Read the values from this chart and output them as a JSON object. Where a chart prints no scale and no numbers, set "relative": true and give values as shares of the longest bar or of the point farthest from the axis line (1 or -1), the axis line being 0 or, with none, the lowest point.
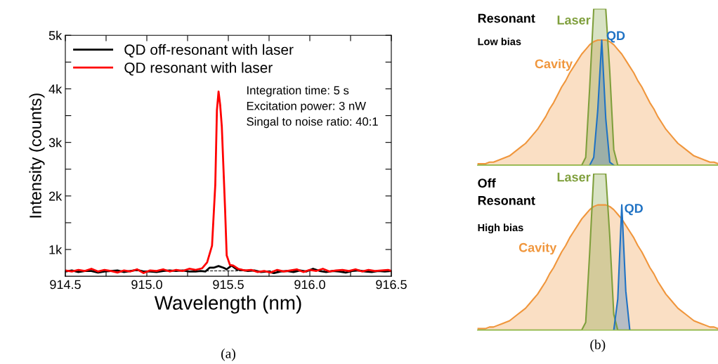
{
  "chart_data": [
    {
      "type": "line",
      "xlabel": "Wavelength (nm)",
      "ylabel": "Intensity (counts)",
      "xlim": [
        914.5,
        916.5
      ],
      "ylim": [
        500,
        5000
      ],
      "xticks": [
        914.5,
        {
          "value": 914.75,
          "label": null
        },
        {
          "value": 915,
          "label": "915.0"
        },
        {
          "value": 915.25,
          "label": null
        },
        915.5,
        {
          "value": 915.75,
          "label": null
        },
        {
          "value": 916,
          "label": "916.0"
        },
        {
          "value": 916.25,
          "label": null
        },
        916.5
      ],
      "yticks": [
        {
          "value": 1000,
          "label": "1k"
        },
        {
          "value": 1500,
          "label": null
        },
        {
          "value": 2000,
          "label": "2k"
        },
        {
          "value": 2500,
          "label": null
        },
        {
          "value": 3000,
          "label": "3k"
        },
        {
          "value": 3500,
          "label": null
        },
        {
          "value": 4000,
          "label": "4k"
        },
        {
          "value": 4500,
          "label": null
        },
        {
          "value": 5000,
          "label": "5k"
        }
      ],
      "legend": "top left",
      "grid": false,
      "marker": "none",
      "line_style": "solid",
      "ref_lines": [
        {
          "axis": "y",
          "value": 600,
          "color": "#000000",
          "line_style": "dashed"
        }
      ],
      "annotations": [
        "Integration time: 5 s\nExcitation power: 3 nW\nSingal to noise ratio: 40:1",
        "(a)"
      ],
      "series": [
        {
          "name": "QD off-resonant with laser",
          "color": "#000000",
          "x": [
            914.5,
            914.54,
            914.58,
            914.62,
            914.66,
            914.7,
            914.74,
            914.78,
            914.82,
            914.86,
            914.9,
            914.94,
            914.98,
            915.02,
            915.06,
            915.1,
            915.14,
            915.18,
            915.22,
            915.26,
            915.3,
            915.33,
            915.36,
            915.385,
            915.41,
            915.44,
            915.47,
            915.49,
            915.52,
            915.55,
            915.58,
            915.62,
            915.66,
            915.7,
            915.74,
            915.78,
            915.82,
            915.86,
            915.9,
            915.94,
            915.98,
            916.02,
            916.06,
            916.1,
            916.14,
            916.18,
            916.22,
            916.26,
            916.3,
            916.34,
            916.38,
            916.42,
            916.46,
            916.5
          ],
          "values": [
            590,
            610,
            580,
            600,
            600,
            570,
            590,
            600,
            610,
            580,
            600,
            620,
            590,
            590,
            580,
            600,
            610,
            600,
            610,
            590,
            590,
            600,
            590,
            660,
            660,
            690,
            660,
            630,
            700,
            630,
            620,
            600,
            610,
            580,
            590,
            560,
            590,
            600,
            580,
            610,
            590,
            640,
            600,
            580,
            600,
            590,
            570,
            600,
            610,
            590,
            580,
            600,
            590,
            600
          ]
        },
        {
          "name": "QD resonant with laser",
          "color": "#ff0000",
          "x": [
            914.5,
            914.54,
            914.58,
            914.62,
            914.66,
            914.7,
            914.74,
            914.78,
            914.82,
            914.86,
            914.9,
            914.94,
            914.98,
            915.02,
            915.06,
            915.1,
            915.14,
            915.18,
            915.22,
            915.26,
            915.3,
            915.34,
            915.37,
            915.4,
            915.42,
            915.43,
            915.44,
            915.45,
            915.46,
            915.48,
            915.49,
            915.51,
            915.53,
            915.56,
            915.6,
            915.64,
            915.68,
            915.72,
            915.76,
            915.8,
            915.84,
            915.88,
            915.92,
            915.96,
            916,
            916.04,
            916.08,
            916.12,
            916.16,
            916.2,
            916.24,
            916.28,
            916.32,
            916.36,
            916.4,
            916.44,
            916.48,
            916.5
          ],
          "values": [
            610,
            590,
            620,
            600,
            640,
            590,
            620,
            600,
            570,
            610,
            590,
            630,
            560,
            610,
            600,
            630,
            590,
            620,
            600,
            640,
            620,
            650,
            760,
            1070,
            2210,
            3600,
            3950,
            3700,
            3300,
            1760,
            890,
            710,
            700,
            640,
            610,
            620,
            580,
            600,
            570,
            620,
            590,
            610,
            630,
            580,
            620,
            600,
            640,
            590,
            610,
            620,
            600,
            630,
            590,
            620,
            600,
            610,
            620,
            600
          ]
        }
      ]
    },
    {
      "type": "area",
      "relative": true,
      "title": "Resonant",
      "subtitle": "Low bias",
      "categories": [
        null,
        null,
        null,
        null,
        null,
        null,
        null,
        null,
        null,
        null,
        null,
        null,
        null,
        null,
        null,
        null,
        null,
        null,
        null,
        null,
        null,
        null,
        null,
        null,
        null,
        null,
        null,
        null,
        null,
        null,
        null,
        null,
        null,
        null,
        null,
        null,
        null,
        null,
        null,
        null,
        null,
        null,
        null,
        null,
        null,
        null,
        null,
        null,
        null,
        null,
        null,
        null,
        null,
        null,
        null,
        null,
        null,
        null,
        null,
        null,
        null
      ],
      "series": [
        {
          "name": "Cavity",
          "color": "#f0963c",
          "values": [
            0.01,
            0.01,
            0.01,
            0.02,
            0.02,
            0.03,
            0.04,
            0.05,
            0.06,
            0.08,
            0.1,
            0.12,
            0.14,
            0.17,
            0.2,
            0.23,
            0.27,
            0.31,
            0.36,
            0.4,
            0.45,
            0.5,
            0.54,
            0.59,
            0.63,
            0.67,
            0.71,
            0.74,
            0.77,
            0.79,
            0.8,
            0.8,
            0.8,
            0.79,
            0.77,
            0.74,
            0.71,
            0.67,
            0.63,
            0.59,
            0.54,
            0.5,
            0.45,
            0.4,
            0.36,
            0.31,
            0.27,
            0.23,
            0.2,
            0.17,
            0.14,
            0.12,
            0.1,
            0.08,
            0.06,
            0.05,
            0.04,
            0.03,
            0.02,
            0.02,
            0.01
          ]
        },
        {
          "name": "Laser",
          "color": "#7f9f3c",
          "values": [
            0,
            0,
            0,
            0,
            0,
            0,
            0,
            0,
            0,
            0,
            0,
            0,
            0,
            0,
            0,
            0,
            0,
            0,
            0,
            0,
            0,
            0,
            0,
            0,
            0,
            0,
            0,
            0.05,
            0.5,
            1,
            1,
            1,
            1,
            0.6,
            0.1,
            0,
            0,
            0,
            0,
            0,
            0,
            0,
            0,
            0,
            0,
            0,
            0,
            0,
            0,
            0,
            0,
            0,
            0,
            0,
            0,
            0,
            0,
            0,
            0,
            0,
            0
          ]
        },
        {
          "name": "QD",
          "color": "#1f72c4",
          "values": [
            null,
            null,
            null,
            null,
            null,
            null,
            null,
            null,
            null,
            null,
            null,
            null,
            null,
            null,
            null,
            null,
            null,
            null,
            null,
            null,
            null,
            null,
            null,
            null,
            null,
            null,
            null,
            null,
            0,
            0.05,
            0.35,
            0.8,
            0.3,
            0.02,
            0,
            null,
            null,
            null,
            null,
            null,
            null,
            null,
            null,
            null,
            null,
            null,
            null,
            null,
            null,
            null,
            null,
            null,
            null,
            null,
            null,
            null,
            null,
            null,
            null,
            null,
            null
          ]
        }
      ]
    },
    {
      "type": "area",
      "relative": true,
      "title": "Off\nResonant",
      "subtitle": "High bias",
      "annotations": [
        "(b)"
      ],
      "categories": [
        null,
        null,
        null,
        null,
        null,
        null,
        null,
        null,
        null,
        null,
        null,
        null,
        null,
        null,
        null,
        null,
        null,
        null,
        null,
        null,
        null,
        null,
        null,
        null,
        null,
        null,
        null,
        null,
        null,
        null,
        null,
        null,
        null,
        null,
        null,
        null,
        null,
        null,
        null,
        null,
        null,
        null,
        null,
        null,
        null,
        null,
        null,
        null,
        null,
        null,
        null,
        null,
        null,
        null,
        null,
        null,
        null,
        null,
        null,
        null,
        null
      ],
      "series": [
        {
          "name": "Cavity",
          "color": "#f0963c",
          "values": [
            0.01,
            0.01,
            0.01,
            0.02,
            0.02,
            0.03,
            0.04,
            0.05,
            0.06,
            0.08,
            0.1,
            0.12,
            0.14,
            0.17,
            0.2,
            0.23,
            0.27,
            0.31,
            0.36,
            0.4,
            0.45,
            0.5,
            0.54,
            0.59,
            0.63,
            0.67,
            0.71,
            0.74,
            0.77,
            0.79,
            0.8,
            0.8,
            0.8,
            0.79,
            0.77,
            0.74,
            0.71,
            0.67,
            0.63,
            0.59,
            0.54,
            0.5,
            0.45,
            0.4,
            0.36,
            0.31,
            0.27,
            0.23,
            0.2,
            0.17,
            0.14,
            0.12,
            0.1,
            0.08,
            0.06,
            0.05,
            0.04,
            0.03,
            0.02,
            0.02,
            0.01
          ]
        },
        {
          "name": "Laser",
          "color": "#7f9f3c",
          "values": [
            0,
            0,
            0,
            0,
            0,
            0,
            0,
            0,
            0,
            0,
            0,
            0,
            0,
            0,
            0,
            0,
            0,
            0,
            0,
            0,
            0,
            0,
            0,
            0,
            0,
            0,
            0,
            0.05,
            0.5,
            1,
            1,
            1,
            1,
            0.6,
            0.1,
            0,
            0,
            0,
            0,
            0,
            0,
            0,
            0,
            0,
            0,
            0,
            0,
            0,
            0,
            0,
            0,
            0,
            0,
            0,
            0,
            0,
            0,
            0,
            0,
            0,
            0
          ]
        },
        {
          "name": "QD",
          "color": "#1f72c4",
          "values": [
            null,
            null,
            null,
            null,
            null,
            null,
            null,
            null,
            null,
            null,
            null,
            null,
            null,
            null,
            null,
            null,
            null,
            null,
            null,
            null,
            null,
            null,
            null,
            null,
            null,
            null,
            null,
            null,
            null,
            null,
            null,
            null,
            null,
            null,
            0,
            0.2,
            0.8,
            0.25,
            0,
            null,
            null,
            null,
            null,
            null,
            null,
            null,
            null,
            null,
            null,
            null,
            null,
            null,
            null,
            null,
            null,
            null,
            null,
            null,
            null,
            null,
            null
          ]
        }
      ]
    }
  ]
}
